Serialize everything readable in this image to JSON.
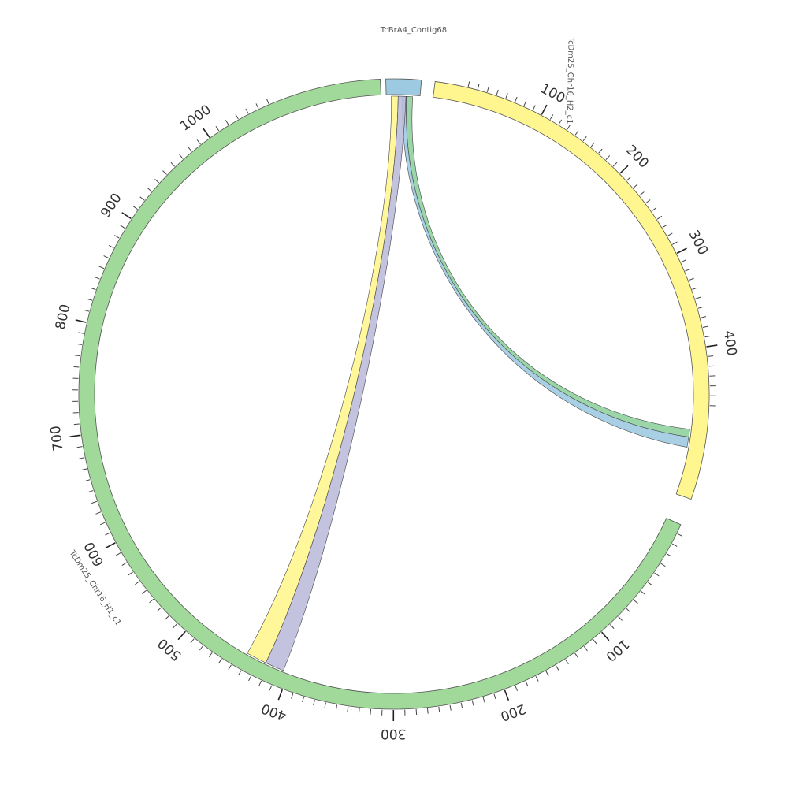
{
  "diagram": {
    "type": "circos",
    "colors": {
      "tcbra4": "#9ecae1",
      "chr16_h2": "#fff68f",
      "chr16_h1": "#a1d99b",
      "ribbon_green": "#8fd19e",
      "ribbon_blue": "#9ecae1",
      "ribbon_yellow": "#fff68f",
      "ribbon_purple": "#bcbddc"
    },
    "sequences": [
      {
        "id": "tcbra4",
        "name": "TcBrA4_Contig68",
        "color_key": "tcbra4",
        "length": 30,
        "tick_labels": []
      },
      {
        "id": "chr16_h2",
        "name": "TcDm25_Chr16_H2_c1",
        "color_key": "chr16_h2",
        "length": 470,
        "tick_labels": [
          "100",
          "200",
          "300",
          "400"
        ]
      },
      {
        "id": "chr16_h1",
        "name": "TcDm25_Chr16_H1_c1",
        "color_key": "chr16_h1",
        "length": 1070,
        "tick_labels": [
          "100",
          "200",
          "300",
          "400",
          "500",
          "600",
          "700",
          "800",
          "900",
          "1000"
        ]
      }
    ],
    "links": [
      {
        "from": "tcbra4",
        "to": "chr16_h2",
        "color_key": "ribbon_green"
      },
      {
        "from": "tcbra4",
        "to": "chr16_h2",
        "color_key": "ribbon_blue"
      },
      {
        "from": "tcbra4",
        "to": "chr16_h1",
        "color_key": "ribbon_yellow"
      },
      {
        "from": "tcbra4",
        "to": "chr16_h1",
        "color_key": "ribbon_purple"
      }
    ]
  }
}
